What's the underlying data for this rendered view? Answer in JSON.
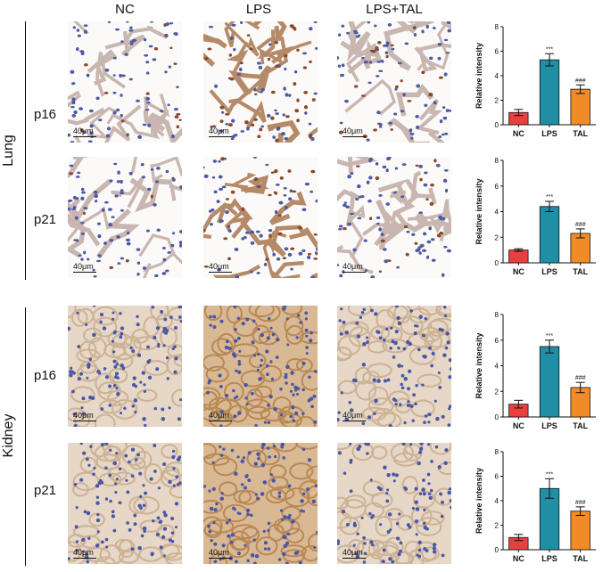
{
  "columns": [
    "NC",
    "LPS",
    "LPS+TAL"
  ],
  "organs": [
    {
      "name": "Lung",
      "rows": [
        "p16",
        "p21"
      ]
    },
    {
      "name": "Kidney",
      "rows": [
        "p16",
        "p21"
      ]
    }
  ],
  "scale_bar": "40μm",
  "colors": {
    "NC": "#e8403f",
    "LPS": "#1f8fa6",
    "TAL": "#f28a26",
    "lung_nuclei": "#5a63a8",
    "kidney_bg": "#e9d6bf"
  },
  "chart_data": [
    {
      "type": "bar",
      "organ": "Lung",
      "marker": "p16",
      "categories": [
        "NC",
        "LPS",
        "TAL"
      ],
      "values": [
        1.0,
        5.3,
        2.9
      ],
      "errors": [
        0.25,
        0.5,
        0.35
      ],
      "significance": [
        "",
        "***",
        "###"
      ],
      "ylabel": "Relative intensity",
      "ylim": [
        0,
        8
      ],
      "yticks": [
        0,
        2,
        4,
        6,
        8
      ]
    },
    {
      "type": "bar",
      "organ": "Lung",
      "marker": "p21",
      "categories": [
        "NC",
        "LPS",
        "TAL"
      ],
      "values": [
        1.0,
        4.4,
        2.3
      ],
      "errors": [
        0.1,
        0.4,
        0.35
      ],
      "significance": [
        "",
        "***",
        "###"
      ],
      "ylabel": "Relative intensity",
      "ylim": [
        0,
        8
      ],
      "yticks": [
        0,
        2,
        4,
        6,
        8
      ]
    },
    {
      "type": "bar",
      "organ": "Kidney",
      "marker": "p16",
      "categories": [
        "NC",
        "LPS",
        "TAL"
      ],
      "values": [
        1.0,
        5.5,
        2.3
      ],
      "errors": [
        0.3,
        0.5,
        0.4
      ],
      "significance": [
        "",
        "***",
        "###"
      ],
      "ylabel": "Relative intensity",
      "ylim": [
        0,
        8
      ],
      "yticks": [
        0,
        2,
        4,
        6,
        8
      ]
    },
    {
      "type": "bar",
      "organ": "Kidney",
      "marker": "p21",
      "categories": [
        "NC",
        "LPS",
        "TAL"
      ],
      "values": [
        1.0,
        5.0,
        3.15
      ],
      "errors": [
        0.25,
        0.8,
        0.35
      ],
      "significance": [
        "",
        "***",
        "###"
      ],
      "ylabel": "Relative intensity",
      "ylim": [
        0,
        8
      ],
      "yticks": [
        0,
        2,
        4,
        6,
        8
      ]
    }
  ]
}
